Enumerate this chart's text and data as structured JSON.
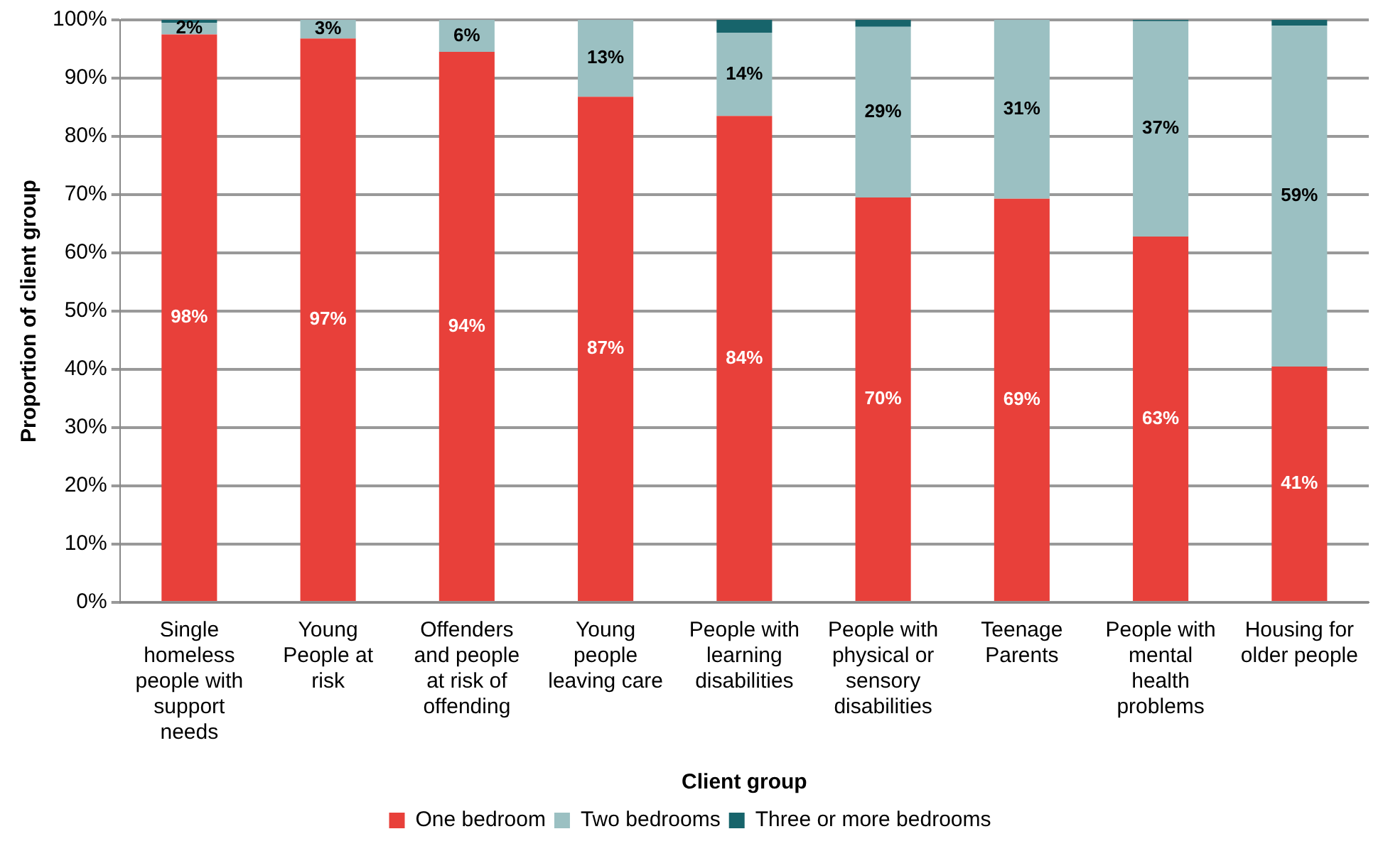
{
  "chart_data": {
    "type": "bar",
    "stacked": true,
    "xlabel": "Client group",
    "ylabel": "Proportion of client group",
    "categories": [
      "Single homeless people with support needs",
      "Young People at risk",
      "Offenders and people at risk of offending",
      "Young people leaving care",
      "People with learning disabilities",
      "People with physical or sensory disabilities",
      "Teenage Parents",
      "People with mental health problems",
      "Housing for older people"
    ],
    "series": [
      {
        "name": "One bedroom",
        "color": "#e8403a",
        "values": [
          97.5,
          96.8,
          94.5,
          86.8,
          83.5,
          69.5,
          69.3,
          62.8,
          40.5
        ],
        "value_labels": [
          "98%",
          "97%",
          "94%",
          "87%",
          "84%",
          "70%",
          "69%",
          "63%",
          "41%"
        ]
      },
      {
        "name": "Two bedrooms",
        "color": "#9bc0c2",
        "values": [
          2.0,
          3.2,
          5.5,
          13.2,
          14.3,
          29.3,
          30.7,
          37.0,
          58.5
        ],
        "value_labels": [
          "2%",
          "3%",
          "6%",
          "13%",
          "14%",
          "29%",
          "31%",
          "37%",
          "59%"
        ]
      },
      {
        "name": "Three or more bedrooms",
        "color": "#17646b",
        "values": [
          0.5,
          0,
          0,
          0,
          2.2,
          1.2,
          0,
          0.2,
          1.0
        ]
      }
    ],
    "ylim": [
      0,
      100
    ],
    "yticks": [
      {
        "value": 0,
        "label": "0%"
      },
      {
        "value": 10,
        "label": "10%"
      },
      {
        "value": 20,
        "label": "20%"
      },
      {
        "value": 30,
        "label": "30%"
      },
      {
        "value": 40,
        "label": "40%"
      },
      {
        "value": 50,
        "label": "50%"
      },
      {
        "value": 60,
        "label": "60%"
      },
      {
        "value": 70,
        "label": "70%"
      },
      {
        "value": 80,
        "label": "80%"
      },
      {
        "value": 90,
        "label": "90%"
      },
      {
        "value": 100,
        "label": "100%"
      }
    ],
    "grid": "y",
    "legend": "bottom"
  }
}
